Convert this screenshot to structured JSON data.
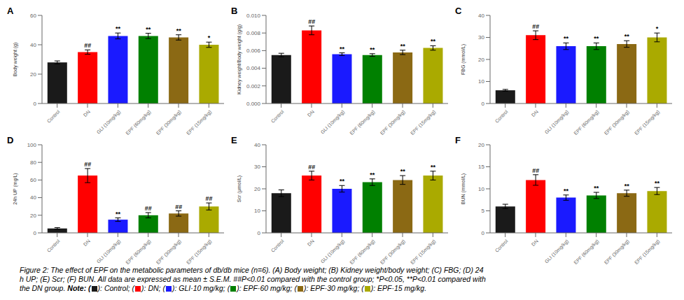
{
  "chart_data": [
    {
      "type": "bar",
      "title": "A",
      "y_label": "Body weight (g)",
      "categories": [
        "Control",
        "DN",
        "GLI (10mg/kg)",
        "EPF (60mg/kg)",
        "EPF (30mg/kg)",
        "EPF (15mg/kg)"
      ],
      "values": [
        28,
        35,
        46,
        46,
        45,
        40
      ],
      "errors": [
        1.0,
        1.5,
        2.0,
        1.8,
        1.8,
        1.8
      ],
      "colors": [
        "#1a1a1a",
        "#FF0000",
        "#1a1aFF",
        "#008000",
        "#8B6914",
        "#AAAA00"
      ],
      "ylim": [
        0,
        60
      ],
      "yticks": [
        0,
        20,
        40,
        60
      ],
      "grid": false,
      "annotations": [
        {
          "category": "DN",
          "text": "##"
        },
        {
          "category": "GLI (10mg/kg)",
          "text": "**"
        },
        {
          "category": "EPF (60mg/kg)",
          "text": "**"
        },
        {
          "category": "EPF (30mg/kg)",
          "text": "**"
        },
        {
          "category": "EPF (15mg/kg)",
          "text": "*"
        }
      ]
    },
    {
      "type": "bar",
      "title": "B",
      "y_label": "Kidney weight/Body weight (g/g)",
      "categories": [
        "Control",
        "DN",
        "GLI (10mg/kg)",
        "EPF (60mg/kg)",
        "EPF (30mg/kg)",
        "EPF (15mg/kg)"
      ],
      "values": [
        0.0055,
        0.0083,
        0.0056,
        0.0055,
        0.0058,
        0.0063
      ],
      "errors": [
        0.0002,
        0.0005,
        0.00015,
        0.00015,
        0.00025,
        0.00025
      ],
      "colors": [
        "#1a1a1a",
        "#FF0000",
        "#1a1aFF",
        "#008000",
        "#8B6914",
        "#AAAA00"
      ],
      "ylim": [
        0.0,
        0.01
      ],
      "yticks": [
        {
          "value": 0.0,
          "label": "0.000"
        },
        0.002,
        0.004,
        0.006,
        0.008,
        {
          "value": 0.01,
          "label": "0.010"
        }
      ],
      "grid": false,
      "annotations": [
        {
          "category": "DN",
          "text": "##"
        },
        {
          "category": "GLI (10mg/kg)",
          "text": "**"
        },
        {
          "category": "EPF (60mg/kg)",
          "text": "**"
        },
        {
          "category": "EPF (30mg/kg)",
          "text": "**"
        },
        {
          "category": "EPF (15mg/kg)",
          "text": "**"
        }
      ]
    },
    {
      "type": "bar",
      "title": "C",
      "y_label": "FBG (mmol/L)",
      "categories": [
        "Control",
        "DN",
        "GLI (10mg/kg)",
        "EPF (60mg/kg)",
        "EPF (30mg/kg)",
        "EPF (15mg/kg)"
      ],
      "values": [
        6,
        31,
        26,
        26,
        27,
        30
      ],
      "errors": [
        0.4,
        2.0,
        1.5,
        1.5,
        1.5,
        2.0
      ],
      "colors": [
        "#1a1a1a",
        "#FF0000",
        "#1a1aFF",
        "#008000",
        "#8B6914",
        "#AAAA00"
      ],
      "ylim": [
        0,
        40
      ],
      "yticks": [
        0,
        10,
        20,
        30,
        40
      ],
      "grid": false,
      "annotations": [
        {
          "category": "DN",
          "text": "##"
        },
        {
          "category": "GLI (10mg/kg)",
          "text": "**"
        },
        {
          "category": "EPF (60mg/kg)",
          "text": "**"
        },
        {
          "category": "EPF (30mg/kg)",
          "text": "**"
        },
        {
          "category": "EPF (15mg/kg)",
          "text": "*"
        }
      ]
    },
    {
      "type": "bar",
      "title": "D",
      "y_label": "24h UP (mg/L)",
      "categories": [
        "Control",
        "DN",
        "GLI (10mg/kg)",
        "EPF (60mg/kg)",
        "EPF (30mg/kg)",
        "EPF (15mg/kg)"
      ],
      "values": [
        5,
        65,
        15,
        20,
        22,
        30
      ],
      "errors": [
        1,
        8,
        2,
        3,
        3,
        4
      ],
      "colors": [
        "#1a1a1a",
        "#FF0000",
        "#1a1aFF",
        "#008000",
        "#8B6914",
        "#AAAA00"
      ],
      "ylim": [
        0,
        100
      ],
      "yticks": [
        0,
        20,
        40,
        60,
        80,
        100
      ],
      "grid": false,
      "annotations": [
        {
          "category": "DN",
          "text": "##"
        },
        {
          "category": "GLI (10mg/kg)",
          "text": "**"
        },
        {
          "category": "EPF (60mg/kg)",
          "text": "##"
        },
        {
          "category": "EPF (30mg/kg)",
          "text": "##"
        },
        {
          "category": "EPF (15mg/kg)",
          "text": "##"
        }
      ]
    },
    {
      "type": "bar",
      "title": "E",
      "y_label": "Scr (μmol/L)",
      "categories": [
        "Control",
        "DN",
        "GLI (10mg/kg)",
        "EPF (60mg/kg)",
        "EPF (30mg/kg)",
        "EPF (15mg/kg)"
      ],
      "values": [
        18,
        26,
        20,
        23,
        24,
        26
      ],
      "errors": [
        1.5,
        2.0,
        1.5,
        1.5,
        2.0,
        2.0
      ],
      "colors": [
        "#1a1a1a",
        "#FF0000",
        "#1a1aFF",
        "#008000",
        "#8B6914",
        "#AAAA00"
      ],
      "ylim": [
        0,
        40
      ],
      "yticks": [
        0,
        10,
        20,
        30,
        40
      ],
      "grid": false,
      "annotations": [
        {
          "category": "DN",
          "text": "##"
        },
        {
          "category": "GLI (10mg/kg)",
          "text": "**"
        },
        {
          "category": "EPF (60mg/kg)",
          "text": "**"
        },
        {
          "category": "EPF (30mg/kg)",
          "text": "**"
        },
        {
          "category": "EPF (15mg/kg)",
          "text": "**"
        }
      ]
    },
    {
      "type": "bar",
      "title": "F",
      "y_label": "BUN (mmol/L)",
      "categories": [
        "Control",
        "DN",
        "GLI (10mg/kg)",
        "EPF (60mg/kg)",
        "EPF (30mg/kg)",
        "EPF (15mg/kg)"
      ],
      "values": [
        6,
        12,
        8,
        8.5,
        9,
        9.5
      ],
      "errors": [
        0.5,
        1.2,
        0.6,
        0.7,
        0.7,
        0.8
      ],
      "colors": [
        "#1a1a1a",
        "#FF0000",
        "#1a1aFF",
        "#008000",
        "#8B6914",
        "#AAAA00"
      ],
      "ylim": [
        0,
        20
      ],
      "yticks": [
        0,
        5,
        10,
        15,
        20
      ],
      "grid": false,
      "annotations": [
        {
          "category": "DN",
          "text": "##"
        },
        {
          "category": "GLI (10mg/kg)",
          "text": "**"
        },
        {
          "category": "EPF (60mg/kg)",
          "text": "**"
        },
        {
          "category": "EPF (30mg/kg)",
          "text": "**"
        },
        {
          "category": "EPF (15mg/kg)",
          "text": "**"
        }
      ]
    }
  ],
  "caption": {
    "lines": [
      "Figure 2: The effect of EPF on the metabolic parameters of db/db mice (n=6). (A) Body weight; (B) Kidney weight/body weight; (C) FBG; (D) 24",
      "h UP; (E) Scr; (F) BUN. All data are expressed as mean ± S.E.M. ##P<0.01 compared with the control group; *P<0.05, **P<0.01 compared with"
    ],
    "note_lead": "the DN group. ",
    "note_prefix": "Note: (",
    "note_entries": [
      {
        "color": "#1a1a1a",
        "label": "): Control; ("
      },
      {
        "color": "#FF0000",
        "label": "): DN; ("
      },
      {
        "color": "#1a1aFF",
        "label": "): GLI·10 mg/kg; ("
      },
      {
        "color": "#008000",
        "label": "): EPF·60 mg/kg; ("
      },
      {
        "color": "#8B6914",
        "label": "): EPF·30 mg/kg; ("
      },
      {
        "color": "#AAAA00",
        "label": "): EPF·15 mg/kg."
      }
    ]
  }
}
